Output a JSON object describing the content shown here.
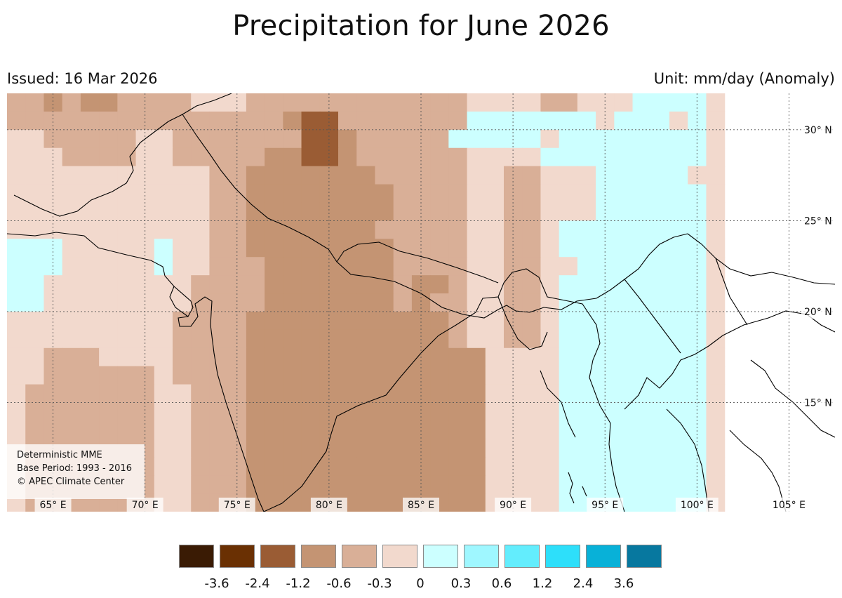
{
  "header": {
    "title": "Precipitation for June 2026",
    "issued": "Issued: 16 Mar 2026",
    "unit": "Unit: mm/day (Anomaly)"
  },
  "info_box": {
    "line1": "Deterministic MME",
    "line2": "Base Period: 1993 - 2016",
    "line3": "© APEC Climate Center"
  },
  "map": {
    "lon_range": [
      62.5,
      107.5
    ],
    "lat_range": [
      9.0,
      32.0
    ],
    "lon_ticks": [
      {
        "value": 65,
        "label": "65° E"
      },
      {
        "value": 70,
        "label": "70° E"
      },
      {
        "value": 75,
        "label": "75° E"
      },
      {
        "value": 80,
        "label": "80° E"
      },
      {
        "value": 85,
        "label": "85° E"
      },
      {
        "value": 90,
        "label": "90° E"
      },
      {
        "value": 95,
        "label": "95° E"
      },
      {
        "value": 100,
        "label": "100° E"
      },
      {
        "value": 105,
        "label": "105° E"
      }
    ],
    "lat_ticks": [
      {
        "value": 30,
        "label": "30° N"
      },
      {
        "value": 25,
        "label": "25° N"
      },
      {
        "value": 20,
        "label": "20° N"
      },
      {
        "value": 15,
        "label": "15° N"
      }
    ],
    "grid_lines": true,
    "anomaly_grid": {
      "lon_start": 62.5,
      "lat_start": 32.0,
      "cell_deg": 1.0,
      "rows": [
        "334344333322233333333333322223322211112",
        "333333333333333455333333311111112111212",
        "223333322333333355433333111112111111112",
        "222333322333334455433333322221111111112",
        "222222222223344444443333322332221111122",
        "222222222223344444444333322332221111112",
        "222222222223344444444333322332221111112",
        "222222222223344444443333322332111111112",
        "111222221223344444444333322332111111112",
        "111222221223334444444333322332211111112",
        "112222222233334444444344322332111111112",
        "112222222233334444444343322332111111112",
        "222222222333344444444444322332111111112",
        "222222222333344444444444322332111111112",
        "223332222333344444444444442222111111112",
        "223333332333344444444444442222111111112",
        "233333332233344444444444442222111111112",
        "233333332233344444444444442222111111112",
        "233333332233344444444444442222111111112",
        "233333332233344444444444442222111111112",
        "233333332233344444444444442222111111112",
        "233333332233344444444444442222111111112",
        "233333332233344444444444442222111111112"
      ]
    }
  },
  "legend": {
    "colors": [
      "#3a1b04",
      "#6a3003",
      "#9a5c34",
      "#c49473",
      "#d9af97",
      "#f2d9cd",
      "#ccffff",
      "#9ff7ff",
      "#63edfd",
      "#2ddffa",
      "#08b1d8",
      "#07789f"
    ],
    "ticks": [
      "-3.6",
      "-2.4",
      "-1.2",
      "-0.6",
      "-0.3",
      "0",
      "0.3",
      "0.6",
      "1.2",
      "2.4",
      "3.6"
    ]
  }
}
